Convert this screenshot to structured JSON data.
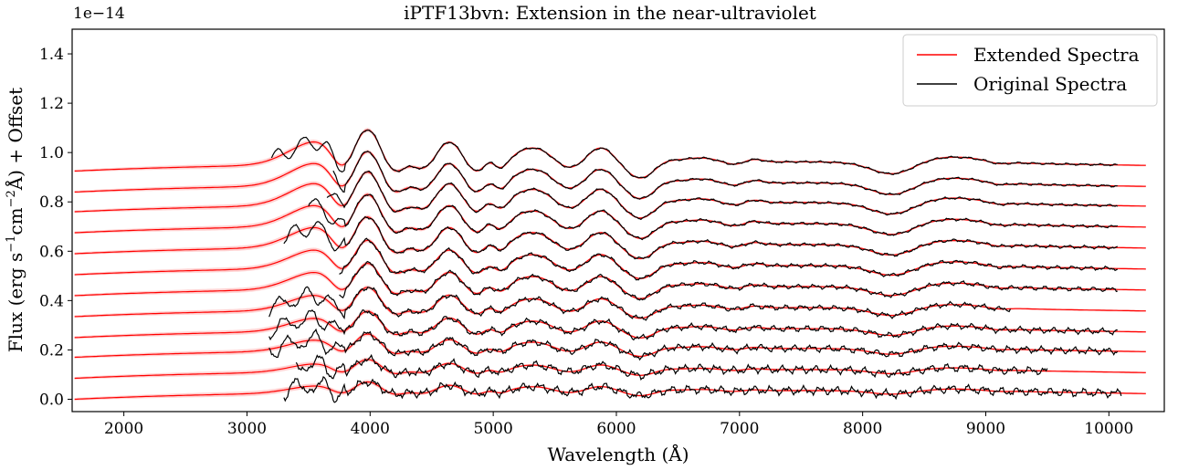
{
  "chart_data": {
    "type": "line",
    "title": "iPTF13bvn: Extension in the near-ultraviolet",
    "xlabel": "Wavelength (Å)",
    "ylabel_parts": [
      "Flux (erg s",
      "−1",
      "cm",
      "−2",
      "Å) + Offset"
    ],
    "y_offset_text": "1e−14",
    "xlim": [
      1580,
      10450
    ],
    "ylim": [
      -0.05,
      1.5
    ],
    "y_scale_factor": "1e-14",
    "xticks": [
      2000,
      3000,
      4000,
      5000,
      6000,
      7000,
      8000,
      9000,
      10000
    ],
    "yticks": [
      0.0,
      0.2,
      0.4,
      0.6,
      0.8,
      1.0,
      1.2,
      1.4
    ],
    "ytick_labels": [
      "0.0",
      "0.2",
      "0.4",
      "0.6",
      "0.8",
      "1.0",
      "1.2",
      "1.4"
    ],
    "grid": false,
    "legend_position": "top-right",
    "legend": [
      {
        "label": "Extended Spectra",
        "color": "#ff0000"
      },
      {
        "label": "Original Spectra",
        "color": "#000000"
      }
    ],
    "extended_range": [
      1600,
      10300
    ],
    "spectra": [
      {
        "offset": 0.0,
        "uv_start": 3300,
        "end": 10100,
        "amp": 0.35
      },
      {
        "offset": 0.085,
        "uv_start": 3400,
        "end": 9500,
        "amp": 0.4
      },
      {
        "offset": 0.17,
        "uv_start": 3180,
        "end": 10070,
        "amp": 0.55
      },
      {
        "offset": 0.25,
        "uv_start": 3180,
        "end": 10070,
        "amp": 0.65
      },
      {
        "offset": 0.335,
        "uv_start": 3180,
        "end": 9200,
        "amp": 0.75
      },
      {
        "offset": 0.42,
        "uv_start": 3750,
        "end": 10070,
        "amp": 0.85
      },
      {
        "offset": 0.505,
        "uv_start": 3750,
        "end": 10070,
        "amp": 0.92
      },
      {
        "offset": 0.59,
        "uv_start": 3300,
        "end": 10070,
        "amp": 1.0
      },
      {
        "offset": 0.675,
        "uv_start": 3500,
        "end": 10070,
        "amp": 1.05
      },
      {
        "offset": 0.76,
        "uv_start": 3650,
        "end": 10070,
        "amp": 1.1
      },
      {
        "offset": 0.84,
        "uv_start": 3700,
        "end": 10070,
        "amp": 1.12
      },
      {
        "offset": 0.925,
        "uv_start": 3200,
        "end": 10070,
        "amp": 1.15
      }
    ],
    "colors": {
      "extended": "#ff0000",
      "original": "#000000",
      "band": "#ffb3b3"
    }
  }
}
